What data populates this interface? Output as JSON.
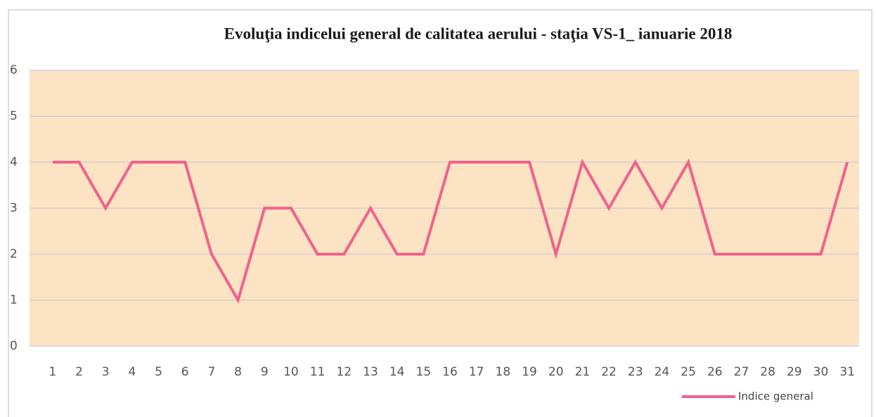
{
  "chart_data": {
    "type": "line",
    "title": "Evoluţia indicelui general de calitatea aerului - staţia VS-1_ ianuarie 2018",
    "categories": [
      "1",
      "2",
      "3",
      "4",
      "5",
      "6",
      "7",
      "8",
      "9",
      "10",
      "11",
      "12",
      "13",
      "14",
      "15",
      "16",
      "17",
      "18",
      "19",
      "20",
      "21",
      "22",
      "23",
      "24",
      "25",
      "26",
      "27",
      "28",
      "29",
      "30",
      "31"
    ],
    "series": [
      {
        "name": "Indice general",
        "color": "#f0628c",
        "values": [
          4,
          4,
          3,
          4,
          4,
          4,
          2,
          1,
          3,
          3,
          2,
          2,
          3,
          2,
          2,
          4,
          4,
          4,
          4,
          2,
          4,
          3,
          4,
          3,
          4,
          2,
          2,
          2,
          2,
          2,
          4
        ]
      }
    ],
    "ylim": [
      0,
      6
    ],
    "yticks": [
      0,
      1,
      2,
      3,
      4,
      5,
      6
    ],
    "grid": true,
    "legend": "bottom-right",
    "background": "#fbe3c3"
  }
}
